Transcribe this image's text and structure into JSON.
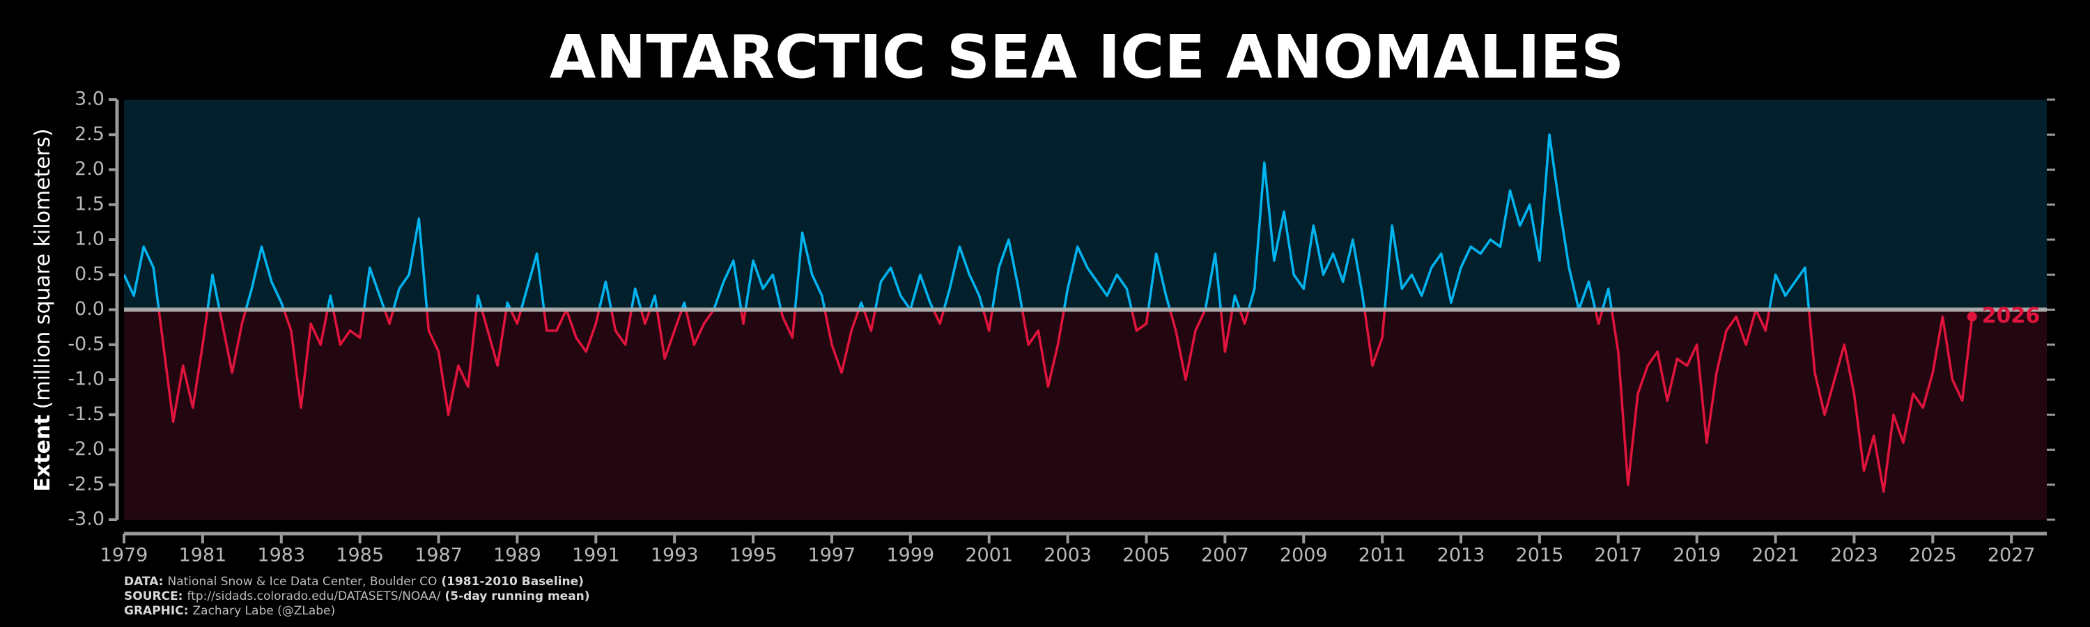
{
  "chart_data": {
    "type": "line",
    "title": "ANTARCTIC SEA ICE ANOMALIES",
    "ylabel_bold": "Extent",
    "ylabel": "(million square kilometers)",
    "annotation": "2026",
    "color_above": "#00b4f0",
    "color_below": "#e0143c",
    "background_above": "#01202b",
    "background_below": "#230710",
    "xlim": [
      1979,
      2027.9
    ],
    "xticks": [
      1979,
      1981,
      1983,
      1985,
      1987,
      1989,
      1991,
      1993,
      1995,
      1997,
      1999,
      2001,
      2003,
      2005,
      2007,
      2009,
      2011,
      2013,
      2015,
      2017,
      2019,
      2021,
      2023,
      2025,
      2027
    ],
    "ylim": [
      -3,
      3
    ],
    "yticks": [
      {
        "value": 3,
        "label": "3.0"
      },
      2.5,
      {
        "value": 2,
        "label": "2.0"
      },
      1.5,
      {
        "value": 1,
        "label": "1.0"
      },
      0.5,
      {
        "value": 0,
        "label": "0.0"
      },
      -0.5,
      {
        "value": -1,
        "label": "-1.0"
      },
      -1.5,
      {
        "value": -2,
        "label": "-2.0"
      },
      -2.5,
      {
        "value": -3,
        "label": "-3.0"
      }
    ],
    "x": [
      1979,
      1979.25,
      1979.5,
      1979.75,
      1980,
      1980.25,
      1980.5,
      1980.75,
      1981,
      1981.25,
      1981.5,
      1981.75,
      1982,
      1982.25,
      1982.5,
      1982.75,
      1983,
      1983.25,
      1983.5,
      1983.75,
      1984,
      1984.25,
      1984.5,
      1984.75,
      1985,
      1985.25,
      1985.5,
      1985.75,
      1986,
      1986.25,
      1986.5,
      1986.75,
      1987,
      1987.25,
      1987.5,
      1987.75,
      1988,
      1988.25,
      1988.5,
      1988.75,
      1989,
      1989.25,
      1989.5,
      1989.75,
      1990,
      1990.25,
      1990.5,
      1990.75,
      1991,
      1991.25,
      1991.5,
      1991.75,
      1992,
      1992.25,
      1992.5,
      1992.75,
      1993,
      1993.25,
      1993.5,
      1993.75,
      1994,
      1994.25,
      1994.5,
      1994.75,
      1995,
      1995.25,
      1995.5,
      1995.75,
      1996,
      1996.25,
      1996.5,
      1996.75,
      1997,
      1997.25,
      1997.5,
      1997.75,
      1998,
      1998.25,
      1998.5,
      1998.75,
      1999,
      1999.25,
      1999.5,
      1999.75,
      2000,
      2000.25,
      2000.5,
      2000.75,
      2001,
      2001.25,
      2001.5,
      2001.75,
      2002,
      2002.25,
      2002.5,
      2002.75,
      2003,
      2003.25,
      2003.5,
      2003.75,
      2004,
      2004.25,
      2004.5,
      2004.75,
      2005,
      2005.25,
      2005.5,
      2005.75,
      2006,
      2006.25,
      2006.5,
      2006.75,
      2007,
      2007.25,
      2007.5,
      2007.75,
      2008,
      2008.25,
      2008.5,
      2008.75,
      2009,
      2009.25,
      2009.5,
      2009.75,
      2010,
      2010.25,
      2010.5,
      2010.75,
      2011,
      2011.25,
      2011.5,
      2011.75,
      2012,
      2012.25,
      2012.5,
      2012.75,
      2013,
      2013.25,
      2013.5,
      2013.75,
      2014,
      2014.25,
      2014.5,
      2014.75,
      2015,
      2015.25,
      2015.5,
      2015.75,
      2016,
      2016.25,
      2016.5,
      2016.75,
      2017,
      2017.25,
      2017.5,
      2017.75,
      2018,
      2018.25,
      2018.5,
      2018.75,
      2019,
      2019.25,
      2019.5,
      2019.75,
      2020,
      2020.25,
      2020.5,
      2020.75,
      2021,
      2021.25,
      2021.5,
      2021.75,
      2022,
      2022.25,
      2022.5,
      2022.75,
      2023,
      2023.25,
      2023.5,
      2023.75,
      2024,
      2024.25,
      2024.5,
      2024.75,
      2025,
      2025.25,
      2025.5,
      2025.75,
      2026
    ],
    "values": [
      0.5,
      0.2,
      0.9,
      0.6,
      -0.5,
      -1.6,
      -0.8,
      -1.4,
      -0.5,
      0.5,
      -0.2,
      -0.9,
      -0.2,
      0.3,
      0.9,
      0.4,
      0.1,
      -0.3,
      -1.4,
      -0.2,
      -0.5,
      0.2,
      -0.5,
      -0.3,
      -0.4,
      0.6,
      0.2,
      -0.2,
      0.3,
      0.5,
      1.3,
      -0.3,
      -0.6,
      -1.5,
      -0.8,
      -1.1,
      0.2,
      -0.3,
      -0.8,
      0.1,
      -0.2,
      0.3,
      0.8,
      -0.3,
      -0.3,
      0.0,
      -0.4,
      -0.6,
      -0.2,
      0.4,
      -0.3,
      -0.5,
      0.3,
      -0.2,
      0.2,
      -0.7,
      -0.3,
      0.1,
      -0.5,
      -0.2,
      0.0,
      0.4,
      0.7,
      -0.2,
      0.7,
      0.3,
      0.5,
      -0.1,
      -0.4,
      1.1,
      0.5,
      0.2,
      -0.5,
      -0.9,
      -0.3,
      0.1,
      -0.3,
      0.4,
      0.6,
      0.2,
      0.0,
      0.5,
      0.1,
      -0.2,
      0.3,
      0.9,
      0.5,
      0.2,
      -0.3,
      0.6,
      1.0,
      0.3,
      -0.5,
      -0.3,
      -1.1,
      -0.5,
      0.3,
      0.9,
      0.6,
      0.4,
      0.2,
      0.5,
      0.3,
      -0.3,
      -0.2,
      0.8,
      0.2,
      -0.3,
      -1.0,
      -0.3,
      0.0,
      0.8,
      -0.6,
      0.2,
      -0.2,
      0.3,
      2.1,
      0.7,
      1.4,
      0.5,
      0.3,
      1.2,
      0.5,
      0.8,
      0.4,
      1.0,
      0.2,
      -0.8,
      -0.4,
      1.2,
      0.3,
      0.5,
      0.2,
      0.6,
      0.8,
      0.1,
      0.6,
      0.9,
      0.8,
      1.0,
      0.9,
      1.7,
      1.2,
      1.5,
      0.7,
      2.5,
      1.5,
      0.6,
      0.0,
      0.4,
      -0.2,
      0.3,
      -0.6,
      -2.5,
      -1.2,
      -0.8,
      -0.6,
      -1.3,
      -0.7,
      -0.8,
      -0.5,
      -1.9,
      -0.9,
      -0.3,
      -0.1,
      -0.5,
      0.0,
      -0.3,
      0.5,
      0.2,
      0.4,
      0.6,
      -0.9,
      -1.5,
      -1.0,
      -0.5,
      -1.2,
      -2.3,
      -1.8,
      -2.6,
      -1.5,
      -1.9,
      -1.2,
      -1.4,
      -0.9,
      -0.1,
      -1.0,
      -1.3,
      -0.1
    ],
    "credits": [
      {
        "label": "DATA:",
        "text": "National Snow & Ice Data Center, Boulder CO",
        "note": "(1981-2010 Baseline)"
      },
      {
        "label": "SOURCE:",
        "text": "ftp://sidads.colorado.edu/DATASETS/NOAA/",
        "note": "(5-day running mean)"
      },
      {
        "label": "GRAPHIC:",
        "text": "Zachary Labe (@ZLabe)"
      }
    ]
  }
}
